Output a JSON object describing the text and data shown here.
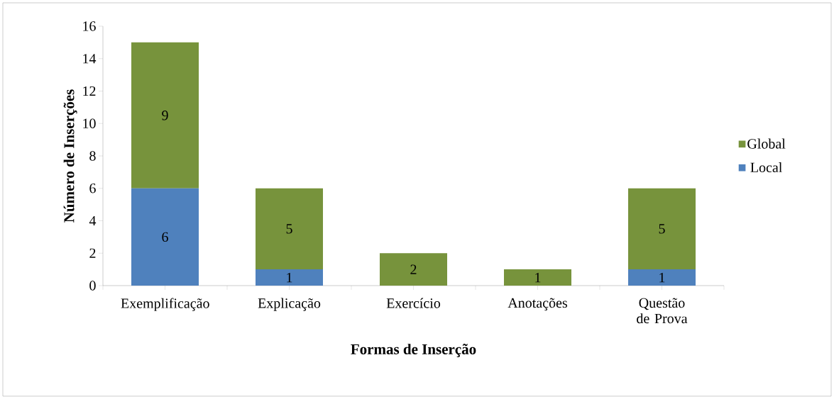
{
  "chart_data": {
    "type": "bar",
    "stacked": true,
    "xlabel": "Formas de Inserção",
    "ylabel": "Número de Inserções",
    "categories": [
      "Exemplificação",
      "Explicação",
      "Exercício",
      "Anotações",
      "Questão de Prova"
    ],
    "series": [
      {
        "name": "Local",
        "color": "#4f81bd",
        "values": [
          6,
          1,
          0,
          0,
          1
        ],
        "value_labels": [
          "6",
          "1",
          null,
          null,
          "1"
        ]
      },
      {
        "name": "Global",
        "color": "#77933c",
        "values": [
          9,
          5,
          2,
          1,
          5
        ],
        "value_labels": [
          "9",
          "5",
          "2",
          "1",
          "5"
        ]
      }
    ],
    "ylim": [
      0,
      16
    ],
    "yticks": [
      0,
      2,
      4,
      6,
      8,
      10,
      12,
      14,
      16
    ],
    "grid": false,
    "legend": "right"
  }
}
